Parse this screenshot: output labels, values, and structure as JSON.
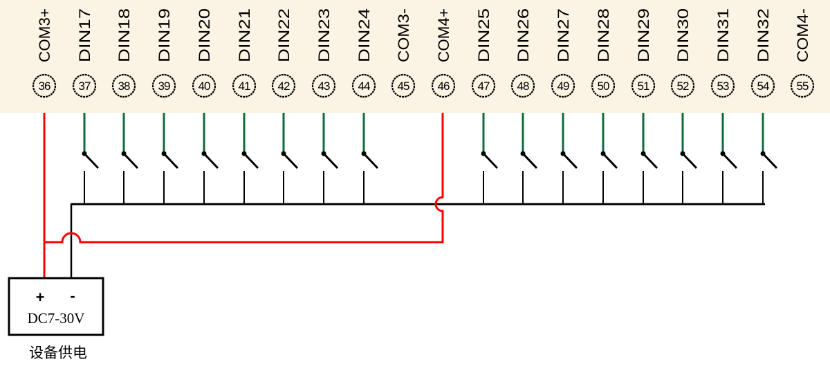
{
  "terminals": [
    {
      "number": "36",
      "label": "COM3+",
      "wire": "red"
    },
    {
      "number": "37",
      "label": "DIN17",
      "wire": "switch"
    },
    {
      "number": "38",
      "label": "DIN18",
      "wire": "switch"
    },
    {
      "number": "39",
      "label": "DIN19",
      "wire": "switch"
    },
    {
      "number": "40",
      "label": "DIN20",
      "wire": "switch"
    },
    {
      "number": "41",
      "label": "DIN21",
      "wire": "switch"
    },
    {
      "number": "42",
      "label": "DIN22",
      "wire": "switch"
    },
    {
      "number": "43",
      "label": "DIN23",
      "wire": "switch"
    },
    {
      "number": "44",
      "label": "DIN24",
      "wire": "switch"
    },
    {
      "number": "45",
      "label": "COM3-",
      "wire": "none"
    },
    {
      "number": "46",
      "label": "COM4+",
      "wire": "red"
    },
    {
      "number": "47",
      "label": "DIN25",
      "wire": "switch"
    },
    {
      "number": "48",
      "label": "DIN26",
      "wire": "switch"
    },
    {
      "number": "49",
      "label": "DIN27",
      "wire": "switch"
    },
    {
      "number": "50",
      "label": "DIN28",
      "wire": "switch"
    },
    {
      "number": "51",
      "label": "DIN29",
      "wire": "switch"
    },
    {
      "number": "52",
      "label": "DIN30",
      "wire": "switch"
    },
    {
      "number": "53",
      "label": "DIN31",
      "wire": "switch"
    },
    {
      "number": "54",
      "label": "DIN32",
      "wire": "switch"
    },
    {
      "number": "55",
      "label": "COM4-",
      "wire": "none"
    }
  ],
  "power_supply": {
    "plus": "+",
    "minus": "-",
    "voltage": "DC7-30V",
    "caption": "设备供电"
  },
  "colors": {
    "header_bg": "#fbf4e4",
    "positive_wire": "#ff0000",
    "input_wire": "#0e6b3a",
    "common_wire": "#000000"
  }
}
